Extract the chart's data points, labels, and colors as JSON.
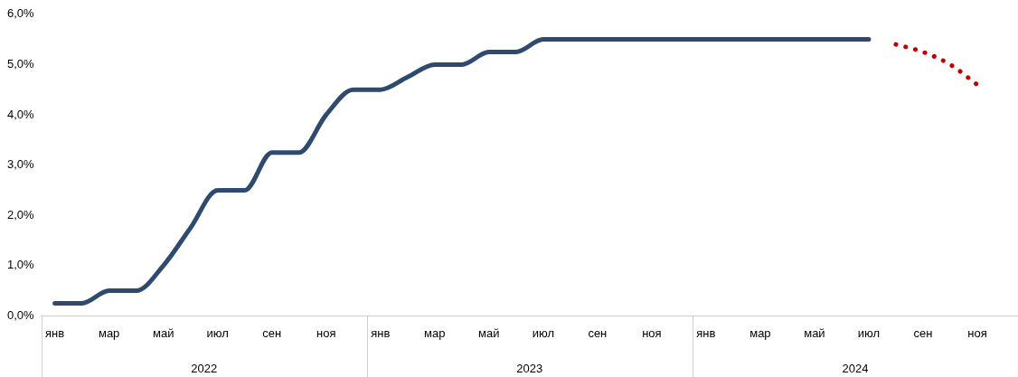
{
  "chart_data": {
    "type": "line",
    "categories": [
      "янв",
      null,
      "мар",
      null,
      "май",
      null,
      "июл",
      null,
      "сен",
      null,
      "ноя",
      null,
      "янв",
      null,
      "мар",
      null,
      "май",
      null,
      "июл",
      null,
      "сен",
      null,
      "ноя",
      null,
      "янв",
      null,
      "мар",
      null,
      "май",
      null,
      "июл",
      null,
      "сен",
      null,
      "ноя",
      null
    ],
    "series": [
      {
        "color": "#2e4a6f",
        "line_style": "solid",
        "values": [
          0.25,
          0.25,
          0.5,
          0.5,
          1.0,
          1.75,
          2.5,
          2.5,
          3.25,
          3.25,
          4.0,
          4.5,
          4.5,
          4.75,
          5.0,
          5.0,
          5.25,
          5.25,
          5.5,
          5.5,
          5.5,
          5.5,
          5.5,
          5.5,
          5.5,
          5.5,
          5.5,
          5.5,
          5.5,
          5.5,
          5.5,
          null,
          null,
          null,
          null,
          null
        ]
      },
      {
        "color": "#c00000",
        "line_style": "dotted",
        "values": [
          null,
          null,
          null,
          null,
          null,
          null,
          null,
          null,
          null,
          null,
          null,
          null,
          null,
          null,
          null,
          null,
          null,
          null,
          null,
          null,
          null,
          null,
          null,
          null,
          null,
          null,
          null,
          null,
          null,
          null,
          null,
          5.4,
          5.25,
          5.0,
          4.6,
          null
        ]
      }
    ],
    "ylim": [
      0,
      6
    ],
    "yticks": [
      {
        "value": 0,
        "label": "0,0%"
      },
      {
        "value": 1,
        "label": "1,0%"
      },
      {
        "value": 2,
        "label": "2,0%"
      },
      {
        "value": 3,
        "label": "3,0%"
      },
      {
        "value": 4,
        "label": "4,0%"
      },
      {
        "value": 5,
        "label": "5,0%"
      },
      {
        "value": 6,
        "label": "6,0%"
      }
    ],
    "annotations": [
      "2022",
      "2023",
      "2024"
    ],
    "grid": false,
    "legend": false,
    "marker": "none"
  }
}
